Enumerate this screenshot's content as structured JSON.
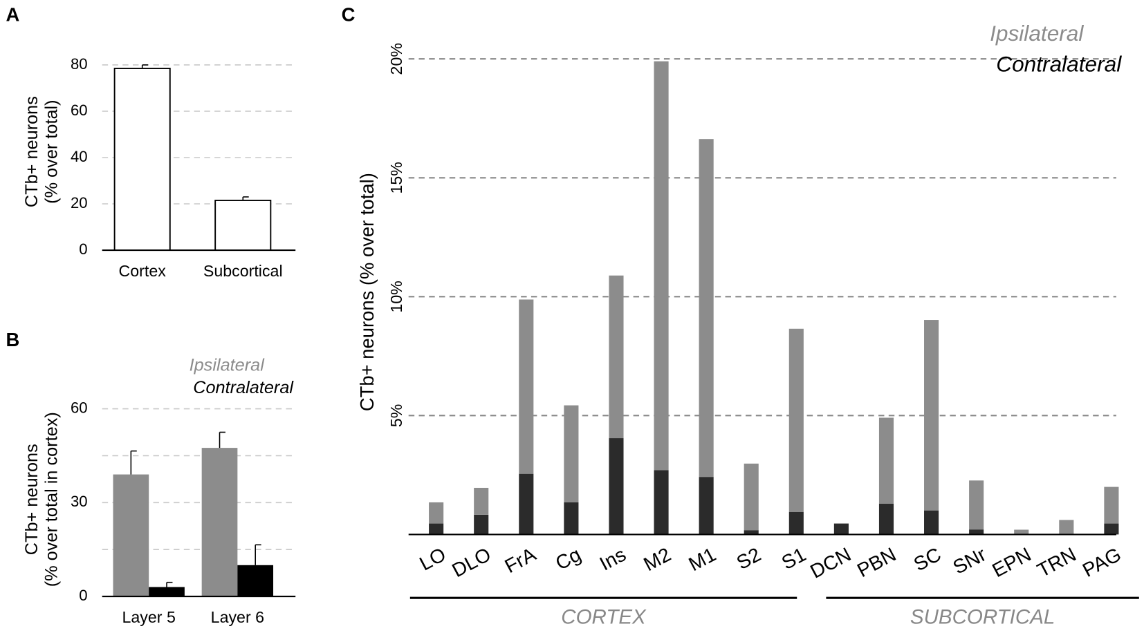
{
  "chart_data": [
    {
      "type": "bar",
      "panel": "A",
      "ylabel": [
        "CTb+ neurons",
        "(% over total)"
      ],
      "categories": [
        "Cortex",
        "Subcortical"
      ],
      "values": [
        78.5,
        21.5
      ],
      "errors": [
        1.5,
        1.5
      ],
      "color": "#ffffff",
      "ylim": [
        0,
        85
      ],
      "yticks": [
        0,
        20,
        40,
        60,
        80
      ],
      "grid": true
    },
    {
      "type": "grouped_bar",
      "panel": "B",
      "ylabel": [
        "CTb+ neurons",
        "(% over total in cortex)"
      ],
      "categories": [
        "Layer 5",
        "Layer 6"
      ],
      "series": [
        {
          "name": "Ipsilateral",
          "color": "#8c8c8c",
          "values": [
            39,
            47.5
          ],
          "errors": [
            7.5,
            5
          ]
        },
        {
          "name": "Contralateral",
          "color": "#000000",
          "values": [
            3,
            10
          ],
          "errors": [
            1.5,
            6.5
          ]
        }
      ],
      "ylim": [
        0,
        62
      ],
      "yticks": [
        0,
        30,
        60
      ],
      "ygrid": [
        15,
        30,
        45,
        60
      ],
      "grid": true
    },
    {
      "type": "stacked_bar",
      "panel": "C",
      "ylabel": "CTb+ neurons (% over total)",
      "categories": [
        "LO",
        "DLO",
        "FrA",
        "Cg",
        "Ins",
        "M2",
        "M1",
        "S2",
        "S1",
        "DCN",
        "PBN",
        "SC",
        "SNr",
        "EPN",
        "TRN",
        "PAG"
      ],
      "series": [
        {
          "name": "Ipsilateral",
          "color": "#8c8c8c",
          "values": [
            0.89,
            1.13,
            7.33,
            4.08,
            6.84,
            17.2,
            14.21,
            2.8,
            7.7,
            0,
            3.62,
            8.01,
            2.06,
            0.2,
            0.58,
            1.54
          ]
        },
        {
          "name": "Contralateral",
          "color": "#2b2b2b",
          "values": [
            0.46,
            0.83,
            2.55,
            1.35,
            4.05,
            2.7,
            2.42,
            0.18,
            0.95,
            0.46,
            1.29,
            1.01,
            0.21,
            0,
            0.03,
            0.46
          ]
        }
      ],
      "groups": [
        {
          "label": "CORTEX",
          "count": 9
        },
        {
          "label": "SUBCORTICAL",
          "count": 7
        }
      ],
      "ylim": [
        0,
        21
      ],
      "yticks": [
        {
          "value": 5,
          "label": "5%"
        },
        {
          "value": 10,
          "label": "10%"
        },
        {
          "value": 15,
          "label": "15%"
        },
        {
          "value": 20,
          "label": "20%"
        }
      ],
      "grid": true
    }
  ]
}
